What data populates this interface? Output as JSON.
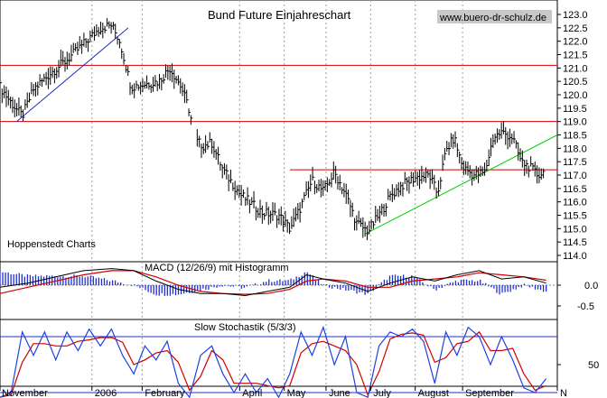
{
  "chart_data": [
    {
      "type": "ohlc",
      "title": "Bund Future Einjahreschart",
      "watermark": "www.buero-dr-schulz.de",
      "source_label": "Hoppenstedt Charts",
      "ylim": [
        114.0,
        123.0
      ],
      "y_ticks": [
        "123.0",
        "122.5",
        "122.0",
        "121.5",
        "121.0",
        "120.5",
        "120.0",
        "119.5",
        "119.0",
        "118.5",
        "118.0",
        "117.5",
        "117.0",
        "116.5",
        "116.0",
        "115.5",
        "115.0",
        "114.5",
        "114.0"
      ],
      "x_ticks": [
        {
          "label": "November",
          "t": 0.0
        },
        {
          "label": "2006",
          "t": 0.165
        },
        {
          "label": "February",
          "t": 0.255
        },
        {
          "label": "April",
          "t": 0.43
        },
        {
          "label": "May",
          "t": 0.51
        },
        {
          "label": "June",
          "t": 0.585
        },
        {
          "label": "July",
          "t": 0.665
        },
        {
          "label": "August",
          "t": 0.745
        },
        {
          "label": "September",
          "t": 0.83
        },
        {
          "label": "N",
          "t": 1.0
        }
      ],
      "price_path": [
        [
          0.0,
          120.3
        ],
        [
          0.02,
          119.7
        ],
        [
          0.04,
          119.2
        ],
        [
          0.06,
          120.2
        ],
        [
          0.09,
          120.8
        ],
        [
          0.12,
          121.3
        ],
        [
          0.155,
          122.0
        ],
        [
          0.18,
          122.5
        ],
        [
          0.2,
          122.6
        ],
        [
          0.215,
          122.0
        ],
        [
          0.235,
          120.3
        ],
        [
          0.26,
          120.4
        ],
        [
          0.285,
          120.5
        ],
        [
          0.305,
          121.0
        ],
        [
          0.325,
          120.3
        ],
        [
          0.34,
          119.4
        ],
        [
          0.35,
          118.3
        ],
        [
          0.365,
          118.1
        ],
        [
          0.38,
          118.2
        ],
        [
          0.4,
          117.2
        ],
        [
          0.43,
          116.3
        ],
        [
          0.47,
          115.6
        ],
        [
          0.5,
          115.5
        ],
        [
          0.52,
          115.0
        ],
        [
          0.535,
          115.6
        ],
        [
          0.56,
          116.8
        ],
        [
          0.58,
          116.4
        ],
        [
          0.6,
          117.1
        ],
        [
          0.62,
          116.3
        ],
        [
          0.64,
          115.2
        ],
        [
          0.66,
          114.9
        ],
        [
          0.68,
          115.5
        ],
        [
          0.7,
          116.2
        ],
        [
          0.72,
          116.6
        ],
        [
          0.745,
          116.9
        ],
        [
          0.77,
          117.0
        ],
        [
          0.785,
          116.3
        ],
        [
          0.8,
          117.9
        ],
        [
          0.815,
          118.4
        ],
        [
          0.83,
          117.3
        ],
        [
          0.85,
          117.0
        ],
        [
          0.87,
          117.1
        ],
        [
          0.885,
          118.4
        ],
        [
          0.9,
          118.6
        ],
        [
          0.92,
          118.4
        ],
        [
          0.935,
          117.5
        ],
        [
          0.95,
          117.3
        ],
        [
          0.965,
          117.0
        ],
        [
          0.975,
          117.1
        ]
      ],
      "gap_after": 0.345,
      "horizontal_lines": [
        {
          "y": 121.1,
          "t_start": 0.0,
          "t_end": 1.0,
          "color": "#d00000"
        },
        {
          "y": 119.0,
          "t_start": 0.0,
          "t_end": 1.0,
          "color": "#d00000"
        },
        {
          "y": 117.2,
          "t_start": 0.52,
          "t_end": 1.0,
          "color": "#d00000"
        }
      ],
      "trend_lines": [
        {
          "t1": 0.03,
          "y1": 119.0,
          "t2": 0.23,
          "y2": 122.5,
          "color": "#2030c0"
        },
        {
          "t1": 0.655,
          "y1": 114.8,
          "t2": 1.0,
          "y2": 118.5,
          "color": "#00d000"
        }
      ]
    },
    {
      "type": "macd",
      "label": "MACD (12/26/9) mit Histogramm",
      "ylim": [
        -0.8,
        0.6
      ],
      "y_ticks": [
        "0.0",
        "-0.5"
      ],
      "macd_path": [
        [
          0.0,
          -0.05
        ],
        [
          0.05,
          0.05
        ],
        [
          0.1,
          0.2
        ],
        [
          0.15,
          0.35
        ],
        [
          0.2,
          0.4
        ],
        [
          0.24,
          0.35
        ],
        [
          0.28,
          0.1
        ],
        [
          0.32,
          -0.1
        ],
        [
          0.36,
          -0.2
        ],
        [
          0.4,
          -0.2
        ],
        [
          0.44,
          -0.25
        ],
        [
          0.48,
          -0.15
        ],
        [
          0.52,
          -0.05
        ],
        [
          0.55,
          0.25
        ],
        [
          0.58,
          0.15
        ],
        [
          0.62,
          0.05
        ],
        [
          0.66,
          -0.15
        ],
        [
          0.7,
          0.05
        ],
        [
          0.74,
          0.2
        ],
        [
          0.78,
          0.1
        ],
        [
          0.82,
          0.25
        ],
        [
          0.86,
          0.35
        ],
        [
          0.9,
          0.15
        ],
        [
          0.94,
          0.2
        ],
        [
          0.98,
          0.05
        ]
      ],
      "signal_path": [
        [
          0.0,
          -0.2
        ],
        [
          0.05,
          -0.05
        ],
        [
          0.1,
          0.1
        ],
        [
          0.15,
          0.25
        ],
        [
          0.2,
          0.35
        ],
        [
          0.24,
          0.35
        ],
        [
          0.28,
          0.2
        ],
        [
          0.32,
          0.0
        ],
        [
          0.36,
          -0.15
        ],
        [
          0.4,
          -0.2
        ],
        [
          0.44,
          -0.22
        ],
        [
          0.48,
          -0.2
        ],
        [
          0.52,
          -0.1
        ],
        [
          0.55,
          0.1
        ],
        [
          0.58,
          0.15
        ],
        [
          0.62,
          0.1
        ],
        [
          0.66,
          -0.05
        ],
        [
          0.7,
          -0.05
        ],
        [
          0.74,
          0.1
        ],
        [
          0.78,
          0.15
        ],
        [
          0.82,
          0.2
        ],
        [
          0.86,
          0.3
        ],
        [
          0.9,
          0.25
        ],
        [
          0.94,
          0.2
        ],
        [
          0.98,
          0.12
        ]
      ]
    },
    {
      "type": "stochastic",
      "label": "Slow Stochastik (5/3/3)",
      "ylim": [
        0,
        100
      ],
      "y_ticks": [
        "50"
      ],
      "reference_lines": [
        80,
        20
      ],
      "k_path": [
        [
          0.0,
          15
        ],
        [
          0.02,
          20
        ],
        [
          0.04,
          85
        ],
        [
          0.06,
          60
        ],
        [
          0.08,
          85
        ],
        [
          0.1,
          55
        ],
        [
          0.12,
          85
        ],
        [
          0.14,
          65
        ],
        [
          0.16,
          88
        ],
        [
          0.18,
          70
        ],
        [
          0.2,
          88
        ],
        [
          0.22,
          60
        ],
        [
          0.24,
          40
        ],
        [
          0.26,
          70
        ],
        [
          0.28,
          55
        ],
        [
          0.3,
          75
        ],
        [
          0.32,
          30
        ],
        [
          0.34,
          15
        ],
        [
          0.36,
          60
        ],
        [
          0.38,
          70
        ],
        [
          0.4,
          40
        ],
        [
          0.42,
          20
        ],
        [
          0.44,
          40
        ],
        [
          0.46,
          20
        ],
        [
          0.48,
          35
        ],
        [
          0.5,
          15
        ],
        [
          0.52,
          40
        ],
        [
          0.54,
          85
        ],
        [
          0.56,
          60
        ],
        [
          0.58,
          90
        ],
        [
          0.6,
          50
        ],
        [
          0.62,
          80
        ],
        [
          0.64,
          20
        ],
        [
          0.66,
          15
        ],
        [
          0.68,
          70
        ],
        [
          0.7,
          85
        ],
        [
          0.72,
          80
        ],
        [
          0.74,
          88
        ],
        [
          0.76,
          75
        ],
        [
          0.78,
          30
        ],
        [
          0.8,
          85
        ],
        [
          0.82,
          60
        ],
        [
          0.84,
          90
        ],
        [
          0.86,
          80
        ],
        [
          0.88,
          50
        ],
        [
          0.9,
          80
        ],
        [
          0.92,
          55
        ],
        [
          0.94,
          25
        ],
        [
          0.96,
          20
        ],
        [
          0.98,
          35
        ]
      ]
    }
  ]
}
